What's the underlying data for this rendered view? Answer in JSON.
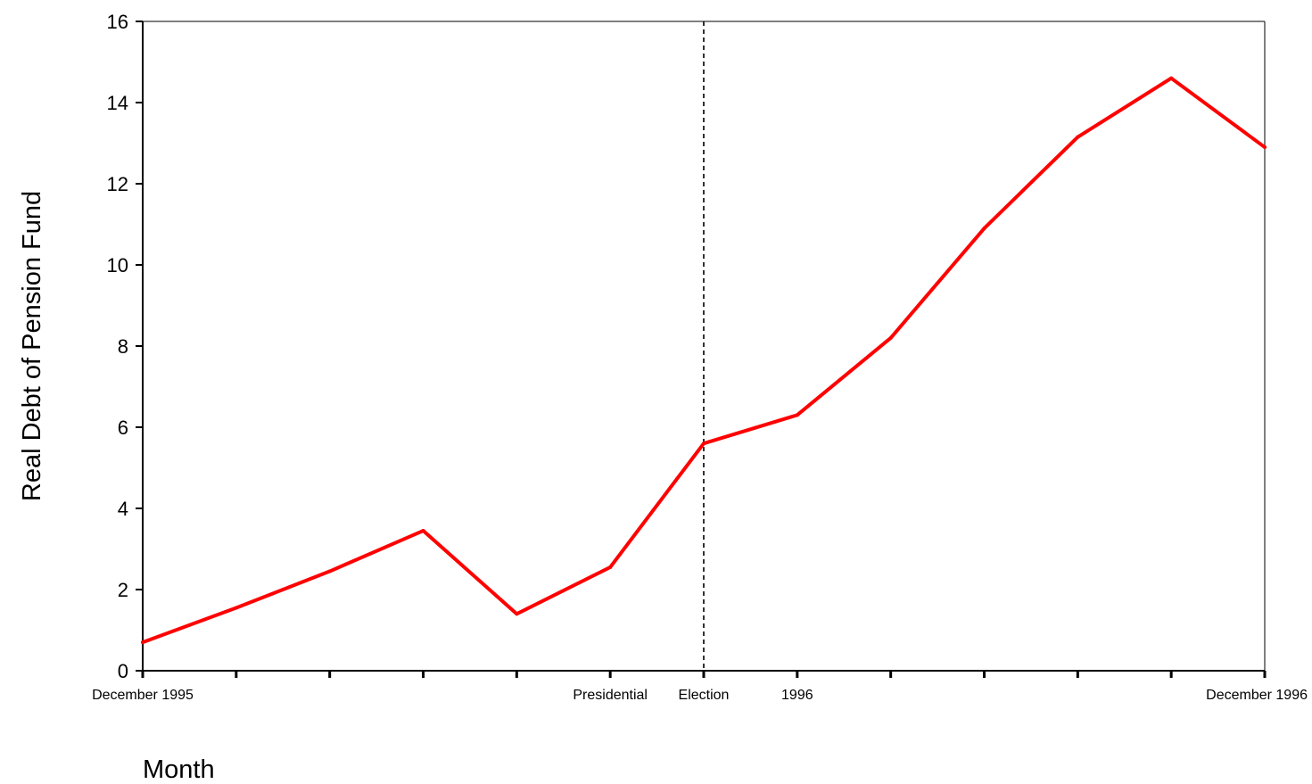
{
  "chart_data": {
    "type": "line",
    "title": "",
    "xlabel": "Month",
    "ylabel": "Real Debt of Pension Fund",
    "ylim": [
      0,
      16
    ],
    "yticks": [
      0,
      2,
      4,
      6,
      8,
      10,
      12,
      14,
      16
    ],
    "x_tick_count": 13,
    "x_tick_labels": [
      {
        "index": 0,
        "text": "December 1995"
      },
      {
        "index": 5,
        "text": "Presidential"
      },
      {
        "index": 6,
        "text": "Election"
      },
      {
        "index": 7,
        "text": "1996"
      },
      {
        "index": 12,
        "text": "December 1996"
      }
    ],
    "reference_line": {
      "x_index": 6,
      "style": "dashed",
      "color": "#000000"
    },
    "grid": false,
    "series": [
      {
        "color": "#ff0000",
        "values": [
          0.7,
          1.55,
          2.45,
          3.45,
          1.4,
          2.55,
          5.6,
          6.3,
          8.2,
          10.9,
          13.15,
          14.6,
          12.9
        ]
      }
    ]
  }
}
